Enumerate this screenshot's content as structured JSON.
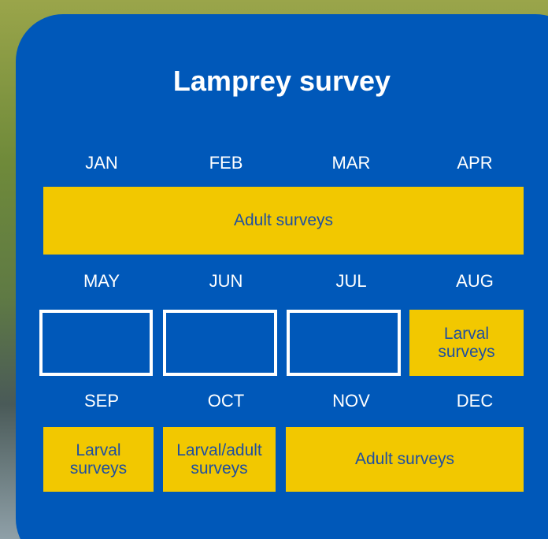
{
  "title": "Lamprey survey",
  "rows": [
    {
      "months": [
        "JAN",
        "FEB",
        "MAR",
        "APR"
      ],
      "blocks": [
        {
          "label": "Adult surveys"
        }
      ]
    },
    {
      "months": [
        "MAY",
        "JUN",
        "JUL",
        "AUG"
      ],
      "blocks": [
        {
          "label": "Larval surveys"
        }
      ]
    },
    {
      "months": [
        "SEP",
        "OCT",
        "NOV",
        "DEC"
      ],
      "blocks": [
        {
          "label": "Larval surveys"
        },
        {
          "label": "Larval/adult surveys"
        },
        {
          "label": "Adult surveys"
        }
      ]
    }
  ]
}
